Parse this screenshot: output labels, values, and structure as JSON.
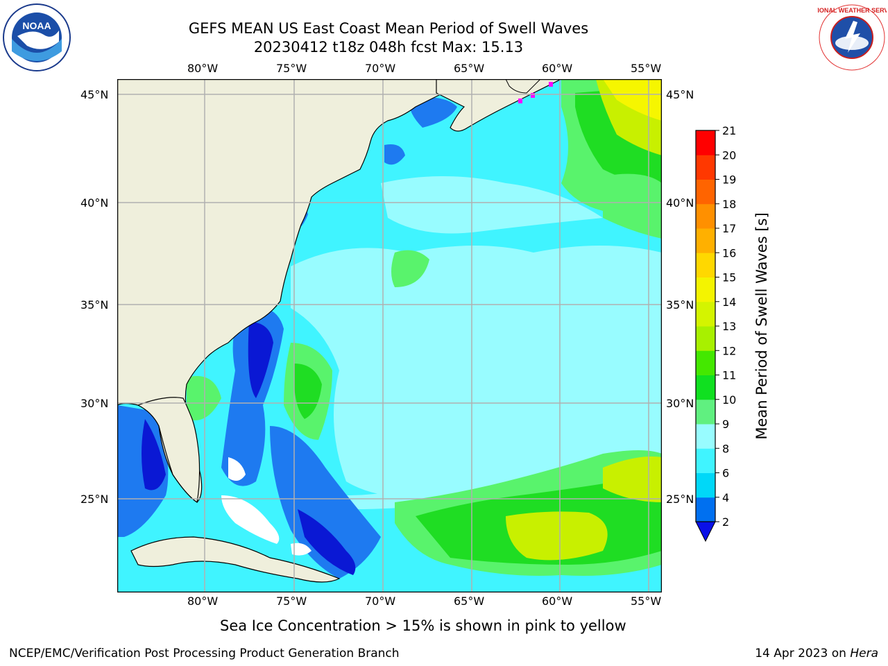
{
  "header": {
    "title_line1": "GEFS MEAN US East Coast Mean Period of Swell Waves",
    "title_line2": "20230412 t18z 048h fcst   Max: 15.13"
  },
  "logos": {
    "left": {
      "name": "noaa-logo",
      "text": "NOAA"
    },
    "right": {
      "name": "nws-logo",
      "text": "NATIONAL WEATHER SERVICE"
    }
  },
  "map": {
    "lon_labels": [
      "80°W",
      "75°W",
      "70°W",
      "65°W",
      "60°W",
      "55°W"
    ],
    "lat_labels": [
      "45°N",
      "40°N",
      "35°N",
      "30°N",
      "25°N"
    ],
    "colors": {
      "land": "#efefdc",
      "dark_blue": "#0a18d4",
      "blue": "#1e7af0",
      "cyan": "#00e8f8",
      "light_cyan": "#40f4ff",
      "pale_cyan": "#98fcff",
      "light_green": "#59f36c",
      "green": "#1fdd23",
      "yellow_green": "#c8f000",
      "yellow": "#f6f600",
      "ice": "#ff00ff",
      "grid": "#b0b0b0"
    }
  },
  "colorbar": {
    "label": "Mean Period of Swell Waves [s]",
    "ticks": [
      "2",
      "4",
      "6",
      "8",
      "9",
      "10",
      "11",
      "12",
      "13",
      "14",
      "15",
      "16",
      "17",
      "18",
      "19",
      "20",
      "21"
    ],
    "colors": [
      "#0070f0",
      "#00d8f8",
      "#40f4ff",
      "#98fcff",
      "#60f080",
      "#10e020",
      "#44e800",
      "#a8f000",
      "#d4f400",
      "#f4f400",
      "#ffd800",
      "#ffb000",
      "#ff9000",
      "#ff6400",
      "#ff3800",
      "#ff0000"
    ],
    "extend_color": "#0a10e8"
  },
  "caption": "Sea Ice Concentration > 15% is shown in pink to yellow",
  "footer": {
    "left": "NCEP/EMC/Verification Post Processing Product Generation Branch",
    "right_date": "14 Apr 2023 on",
    "right_machine": "Hera"
  }
}
